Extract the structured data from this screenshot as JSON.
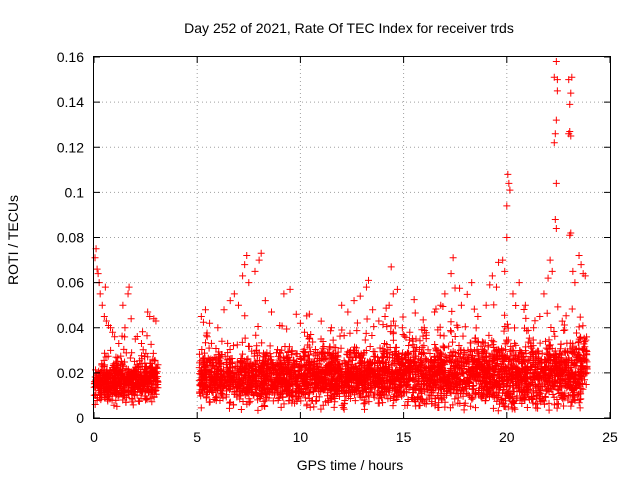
{
  "chart_data": {
    "type": "scatter",
    "title": "Day 252 of 2021, Rate Of TEC Index for receiver trds",
    "xlabel": "GPS time / hours",
    "ylabel": "ROTI / TECUs",
    "xlim": [
      0,
      25
    ],
    "ylim": [
      0,
      0.16
    ],
    "x_ticks": [
      "0",
      "5",
      "10",
      "15",
      "20",
      "25"
    ],
    "y_ticks": [
      "0",
      "0.02",
      "0.04",
      "0.06",
      "0.08",
      "0.1",
      "0.12",
      "0.14",
      "0.16"
    ],
    "grid": true,
    "marker": "+",
    "color": "#ff0000",
    "segments": [
      {
        "start": 0.0,
        "end": 3.1,
        "base": 0.016,
        "spread": 0.008,
        "max": 0.075
      },
      {
        "start": 5.1,
        "end": 15.0,
        "base": 0.018,
        "spread": 0.01,
        "max": 0.073
      },
      {
        "start": 15.0,
        "end": 23.9,
        "base": 0.019,
        "spread": 0.012,
        "max": 0.158
      }
    ],
    "series": [
      {
        "values": [
          [
            0.05,
            0.071
          ],
          [
            0.1,
            0.075
          ],
          [
            0.15,
            0.066
          ],
          [
            0.2,
            0.064
          ],
          [
            0.25,
            0.06
          ],
          [
            0.3,
            0.055
          ],
          [
            0.4,
            0.05
          ],
          [
            0.5,
            0.045
          ],
          [
            0.55,
            0.058
          ],
          [
            0.6,
            0.043
          ],
          [
            0.7,
            0.041
          ],
          [
            0.8,
            0.04
          ],
          [
            0.9,
            0.038
          ],
          [
            1.0,
            0.036
          ],
          [
            1.2,
            0.033
          ],
          [
            1.4,
            0.05
          ],
          [
            1.5,
            0.04
          ],
          [
            1.65,
            0.055
          ],
          [
            1.7,
            0.058
          ],
          [
            1.8,
            0.044
          ],
          [
            2.0,
            0.035
          ],
          [
            2.3,
            0.033
          ],
          [
            2.6,
            0.047
          ],
          [
            2.7,
            0.045
          ],
          [
            2.9,
            0.044
          ],
          [
            3.0,
            0.043
          ],
          [
            5.2,
            0.045
          ],
          [
            5.4,
            0.048
          ],
          [
            5.6,
            0.042
          ],
          [
            6.0,
            0.04
          ],
          [
            6.3,
            0.048
          ],
          [
            6.6,
            0.052
          ],
          [
            6.8,
            0.055
          ],
          [
            7.0,
            0.05
          ],
          [
            7.2,
            0.063
          ],
          [
            7.3,
            0.068
          ],
          [
            7.4,
            0.072
          ],
          [
            7.5,
            0.06
          ],
          [
            7.8,
            0.065
          ],
          [
            8.0,
            0.07
          ],
          [
            8.1,
            0.073
          ],
          [
            8.3,
            0.052
          ],
          [
            8.6,
            0.047
          ],
          [
            9.0,
            0.041
          ],
          [
            9.2,
            0.055
          ],
          [
            9.5,
            0.057
          ],
          [
            9.8,
            0.046
          ],
          [
            10.0,
            0.042
          ],
          [
            10.2,
            0.038
          ],
          [
            10.5,
            0.037
          ],
          [
            11.0,
            0.035
          ],
          [
            11.5,
            0.04
          ],
          [
            12.0,
            0.05
          ],
          [
            12.3,
            0.047
          ],
          [
            12.6,
            0.052
          ],
          [
            12.9,
            0.054
          ],
          [
            13.2,
            0.058
          ],
          [
            13.3,
            0.061
          ],
          [
            13.5,
            0.048
          ],
          [
            13.8,
            0.043
          ],
          [
            14.1,
            0.045
          ],
          [
            14.3,
            0.05
          ],
          [
            14.5,
            0.055
          ],
          [
            14.7,
            0.057
          ],
          [
            14.4,
            0.067
          ],
          [
            15.3,
            0.038
          ],
          [
            15.6,
            0.035
          ],
          [
            16.0,
            0.04
          ],
          [
            16.5,
            0.047
          ],
          [
            16.8,
            0.05
          ],
          [
            17.0,
            0.055
          ],
          [
            17.3,
            0.064
          ],
          [
            17.4,
            0.071
          ],
          [
            17.8,
            0.05
          ],
          [
            18.3,
            0.06
          ],
          [
            18.6,
            0.045
          ],
          [
            19.0,
            0.05
          ],
          [
            19.3,
            0.063
          ],
          [
            19.5,
            0.058
          ],
          [
            19.6,
            0.069
          ],
          [
            19.8,
            0.07
          ],
          [
            19.9,
            0.065
          ],
          [
            20.0,
            0.094
          ],
          [
            20.05,
            0.108
          ],
          [
            20.1,
            0.104
          ],
          [
            20.15,
            0.101
          ],
          [
            20.0,
            0.08
          ],
          [
            20.3,
            0.055
          ],
          [
            20.6,
            0.06
          ],
          [
            20.9,
            0.05
          ],
          [
            21.3,
            0.04
          ],
          [
            21.6,
            0.045
          ],
          [
            21.8,
            0.055
          ],
          [
            22.0,
            0.062
          ],
          [
            22.1,
            0.07
          ],
          [
            22.2,
            0.065
          ],
          [
            22.3,
            0.122
          ],
          [
            22.35,
            0.126
          ],
          [
            22.4,
            0.132
          ],
          [
            22.4,
            0.104
          ],
          [
            22.35,
            0.088
          ],
          [
            22.4,
            0.084
          ],
          [
            22.3,
            0.151
          ],
          [
            22.4,
            0.158
          ],
          [
            22.45,
            0.145
          ],
          [
            22.45,
            0.15
          ],
          [
            23.0,
            0.126
          ],
          [
            23.05,
            0.127
          ],
          [
            23.1,
            0.125
          ],
          [
            23.1,
            0.082
          ],
          [
            23.05,
            0.081
          ],
          [
            23.0,
            0.15
          ],
          [
            23.1,
            0.144
          ],
          [
            23.05,
            0.139
          ],
          [
            23.15,
            0.151
          ],
          [
            23.2,
            0.065
          ],
          [
            23.3,
            0.06
          ],
          [
            23.5,
            0.072
          ],
          [
            23.6,
            0.068
          ],
          [
            23.7,
            0.064
          ],
          [
            23.8,
            0.063
          ]
        ]
      }
    ]
  }
}
